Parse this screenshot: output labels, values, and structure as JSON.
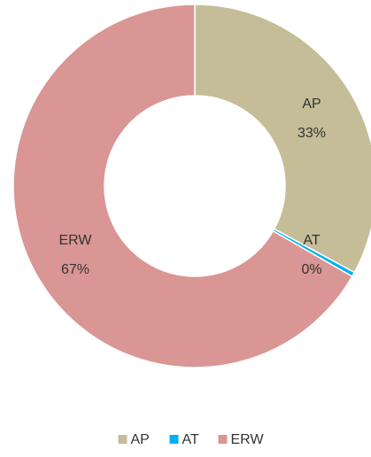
{
  "chart_data": {
    "type": "donut",
    "categories": [
      "AP",
      "AT",
      "ERW"
    ],
    "values": [
      32.9,
      0.4,
      66.7
    ],
    "value_labels": [
      "33%",
      "0%",
      "67%"
    ],
    "colors": [
      "#c4bd97",
      "#00b0f0",
      "#d99694"
    ],
    "legend": "bottom"
  }
}
